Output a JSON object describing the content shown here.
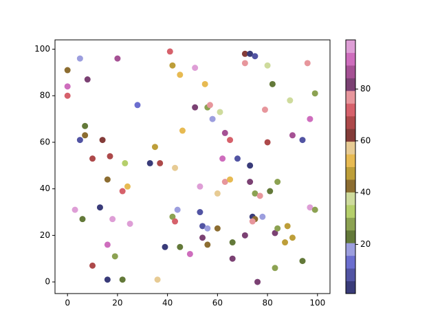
{
  "chart_data": {
    "type": "scatter",
    "x": [
      41,
      71,
      73,
      75,
      5,
      20,
      0,
      42,
      45,
      51,
      71,
      80,
      96,
      8,
      0,
      0,
      55,
      82,
      99,
      28,
      51,
      56,
      57,
      61,
      58,
      79,
      89,
      97,
      7,
      7,
      5,
      14,
      46,
      63,
      65,
      80,
      90,
      94,
      35,
      10,
      17,
      23,
      33,
      37,
      43,
      62,
      68,
      73,
      16,
      24,
      22,
      53,
      63,
      65,
      60,
      73,
      75,
      77,
      81,
      84,
      3,
      13,
      6,
      18,
      25,
      44,
      42,
      43,
      53,
      54,
      56,
      60,
      74,
      75,
      74,
      78,
      83,
      84,
      88,
      97,
      99,
      90,
      87,
      54,
      56,
      66,
      71,
      16,
      39,
      45,
      49,
      19,
      66,
      10,
      83,
      94,
      16,
      22,
      36,
      76
    ],
    "values": [
      99,
      98,
      98,
      97,
      96,
      96,
      91,
      93,
      89,
      92,
      94,
      93,
      94,
      87,
      84,
      80,
      85,
      85,
      81,
      76,
      75,
      75,
      76,
      73,
      70,
      74,
      78,
      70,
      67,
      63,
      61,
      61,
      65,
      64,
      61,
      60,
      63,
      61,
      58,
      53,
      54,
      51,
      51,
      51,
      49,
      53,
      53,
      50,
      44,
      41,
      39,
      41,
      43,
      44,
      38,
      43,
      38,
      37,
      39,
      43,
      31,
      32,
      27,
      27,
      25,
      31,
      28,
      26,
      30,
      24,
      23,
      23,
      28,
      27,
      26,
      28,
      21,
      23,
      24,
      32,
      31,
      19,
      17,
      19,
      16,
      17,
      20,
      16,
      15,
      15,
      12,
      11,
      10,
      7,
      6,
      9,
      1,
      1,
      1,
      0
    ],
    "color_values": [
      72,
      62,
      3,
      8,
      18,
      87,
      43,
      48,
      52,
      97,
      77,
      38,
      77,
      82,
      92,
      72,
      52,
      23,
      28,
      13,
      82,
      28,
      77,
      38,
      18,
      77,
      38,
      92,
      23,
      43,
      8,
      62,
      52,
      87,
      72,
      67,
      87,
      8,
      48,
      67,
      67,
      33,
      3,
      67,
      57,
      92,
      8,
      3,
      43,
      52,
      72,
      97,
      77,
      52,
      57,
      82,
      28,
      77,
      23,
      28,
      97,
      3,
      23,
      97,
      97,
      18,
      28,
      72,
      8,
      8,
      18,
      43,
      3,
      43,
      77,
      18,
      82,
      28,
      48,
      97,
      28,
      48,
      48,
      82,
      43,
      23,
      82,
      92,
      3,
      23,
      92,
      28,
      82,
      67,
      28,
      23,
      3,
      23,
      57,
      82
    ],
    "colormap": [
      "#393b79",
      "#5254a3",
      "#6b6ecf",
      "#9c9ede",
      "#637939",
      "#8ca252",
      "#b5cf6b",
      "#cedb9c",
      "#8c6d31",
      "#bd9e39",
      "#e7ba52",
      "#e7cb94",
      "#843c39",
      "#ad494a",
      "#d6616b",
      "#e7969c",
      "#7b4173",
      "#a55194",
      "#ce6dbd",
      "#de9ed6"
    ],
    "clim": [
      1,
      99
    ],
    "cticks": [
      20,
      40,
      60,
      80
    ],
    "xlim": [
      -5,
      105
    ],
    "ylim": [
      -5,
      104
    ],
    "xticks": [
      0,
      20,
      40,
      60,
      80,
      100
    ],
    "yticks": [
      0,
      20,
      40,
      60,
      80,
      100
    ]
  }
}
